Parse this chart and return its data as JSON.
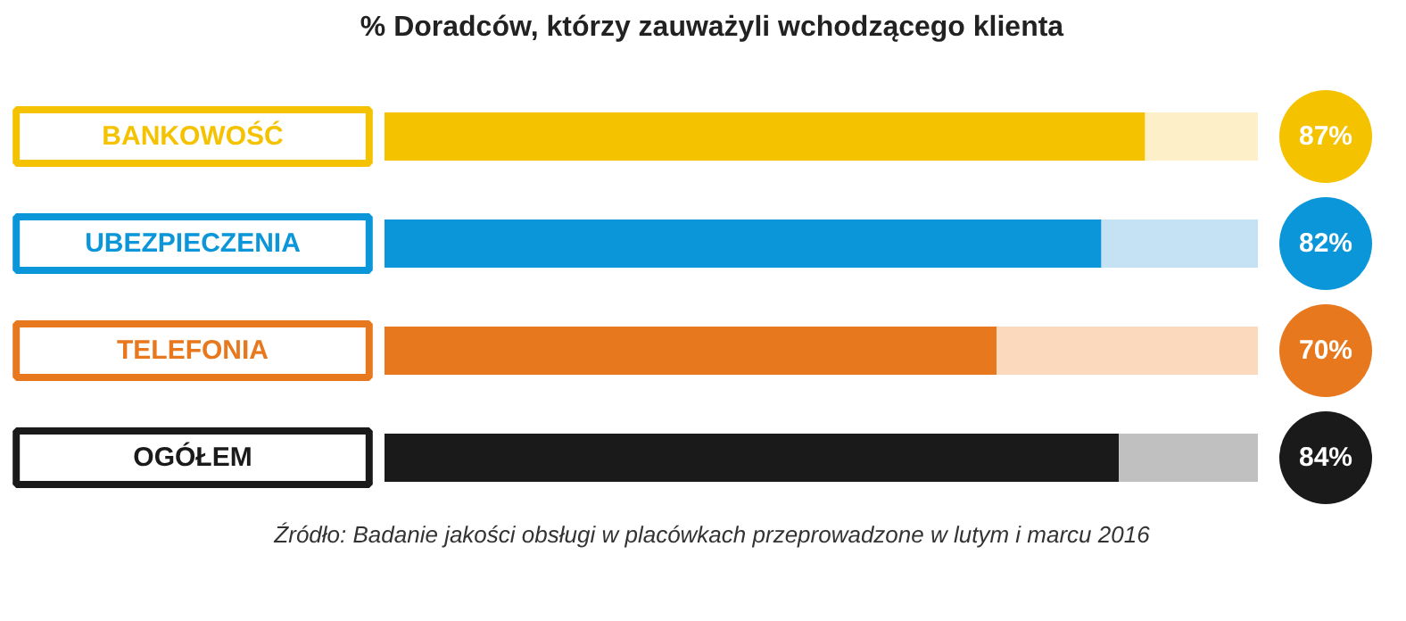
{
  "chart_data": {
    "type": "bar",
    "orientation": "horizontal",
    "stacked": true,
    "title": "% Doradców, którzy zauważyli wchodzącego klienta",
    "categories": [
      "BANKOWOŚĆ",
      "UBEZPIECZENIA",
      "TELEFONIA",
      "OGÓŁEM"
    ],
    "series": [
      {
        "colors": [
          "#f5c200",
          "#0a96d8",
          "#e8781e",
          "#1a1a1a"
        ],
        "values": [
          87,
          82,
          70,
          84
        ],
        "value_labels": [
          "87%",
          "82%",
          "70%",
          "84%"
        ]
      },
      {
        "colors": [
          "#fdf0c8",
          "#c5e2f5",
          "#fbd9bd",
          "#c0c0c0"
        ],
        "values": [
          13,
          18,
          30,
          16
        ]
      }
    ],
    "xlim": [
      0,
      100
    ],
    "tick_labels": false,
    "grid": false,
    "annotations": [
      "Źródło: Badanie jakości obsługi w placówkach przeprowadzone w lutym i marcu 2016"
    ]
  }
}
